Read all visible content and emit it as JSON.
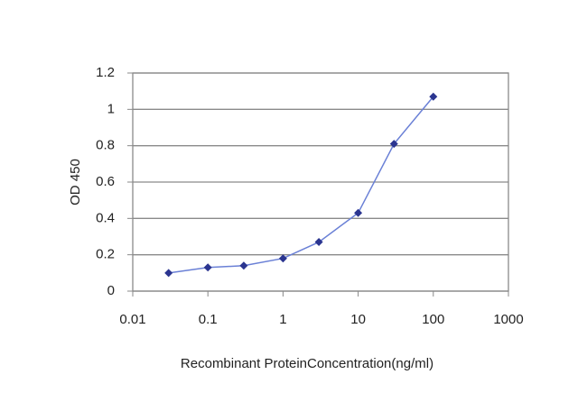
{
  "chart_data": {
    "type": "line",
    "x_label": "Recombinant ProteinConcentration(ng/ml)",
    "y_label": "OD 450",
    "x": [
      0.03,
      0.1,
      0.3,
      1,
      3,
      10,
      30,
      100
    ],
    "series": [
      {
        "color": "#2b3590",
        "line_color": "#6a80d6",
        "values": [
          0.1,
          0.13,
          0.14,
          0.18,
          0.27,
          0.43,
          0.81,
          1.07
        ]
      }
    ],
    "xscale": "log",
    "xlim": [
      0.01,
      1000
    ],
    "xticks": [
      0.01,
      0.1,
      1,
      10,
      100,
      1000
    ],
    "ylim": [
      0,
      1.2
    ],
    "yticks": [
      0,
      0.2,
      0.4,
      0.6,
      0.8,
      1,
      1.2
    ],
    "grid": true
  }
}
